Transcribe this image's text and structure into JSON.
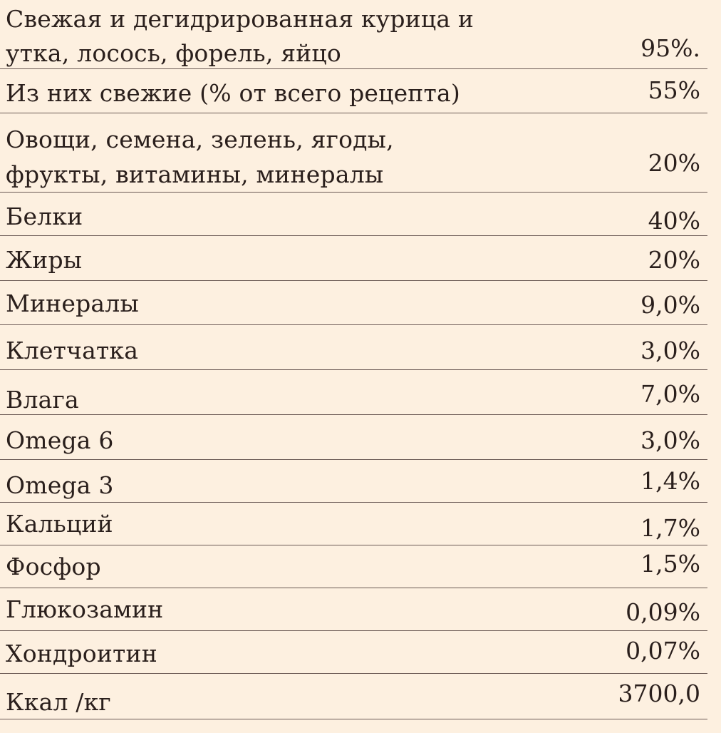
{
  "rows": [
    {
      "label_lines": [
        "Свежая и дегидрированная  курица и",
        "утка, лосось, форель, яйцо"
      ],
      "value": "95%."
    },
    {
      "label": "Из них свежие (% от всего рецепта)",
      "value": "55%"
    },
    {
      "label_lines": [
        "Овощи, семена, зелень, ягоды,",
        "фрукты, витамины, минералы"
      ],
      "value": "20%"
    },
    {
      "label": "Белки",
      "value": "40%"
    },
    {
      "label": "Жиры",
      "value": "20%"
    },
    {
      "label": "Минералы",
      "value": "9,0%"
    },
    {
      "label": "Клетчатка",
      "value": "3,0%"
    },
    {
      "label": "Влага",
      "value": "7,0%"
    },
    {
      "label": "Omega 6",
      "value": "3,0%"
    },
    {
      "label": "Omega 3",
      "value": "1,4%"
    },
    {
      "label": "Кальций",
      "value": "1,7%"
    },
    {
      "label": "Фосфор",
      "value": "1,5%"
    },
    {
      "label": "Глюкозамин",
      "value": "0,09%"
    },
    {
      "label": "Хондроитин",
      "value": "0,07%"
    },
    {
      "label": "Ккал /кг",
      "value": "3700,0"
    }
  ]
}
